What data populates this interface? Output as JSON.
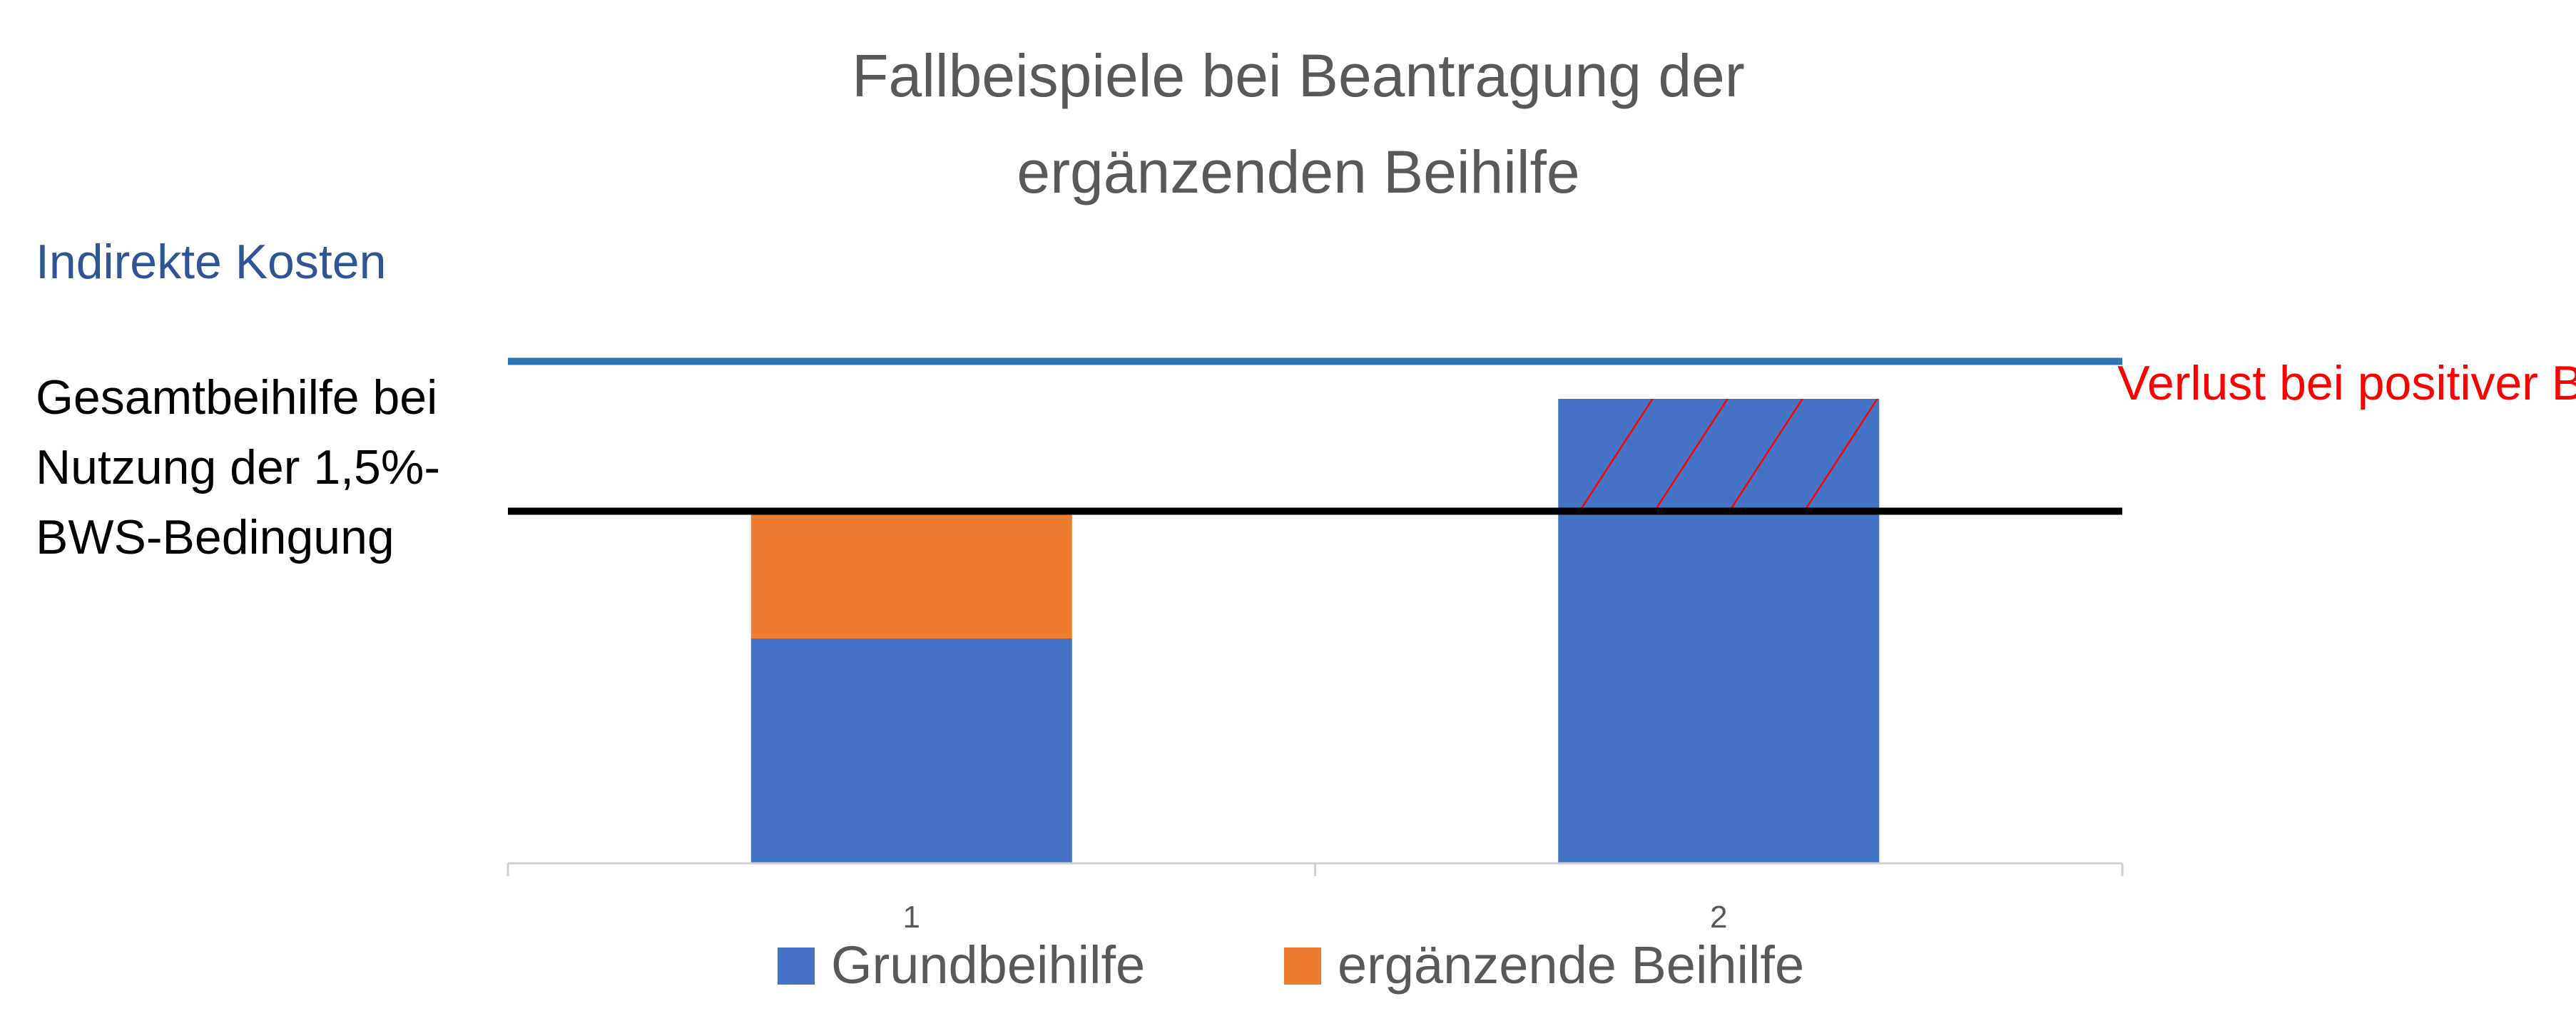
{
  "chart_data": {
    "type": "bar",
    "stacked": true,
    "title_lines": [
      "Fallbeispiele bei Beantragung der",
      "ergänzenden Beihilfe"
    ],
    "categories": [
      "1",
      "2"
    ],
    "series": [
      {
        "name": "Grundbeihilfe",
        "values": [
          30,
          62
        ]
      },
      {
        "name": "ergänzende Beihilfe",
        "values": [
          17,
          0
        ]
      }
    ],
    "ylim": [
      0,
      100
    ],
    "reference_lines": [
      {
        "label": "Indirekte Kosten",
        "value": 67,
        "color": "#2E75B6",
        "label_lines": [
          "Indirekte Kosten"
        ]
      },
      {
        "label": "Gesamtbeihilfe bei Nutzung der 1,5%-BWS-Bedingung",
        "value": 47,
        "color": "#000000",
        "label_lines": [
          "Gesamtbeihilfe bei",
          "Nutzung der 1,5%-",
          "BWS-Bedingung"
        ]
      }
    ],
    "annotations": [
      {
        "text": "Verlust bei positiver BWS",
        "category": "2",
        "from": 47,
        "to": 62,
        "color": "#FF0000"
      }
    ],
    "legend_position": "bottom",
    "grid": false,
    "colors": {
      "Grundbeihilfe": "#4472C4",
      "ergänzende Beihilfe": "#ED7D31",
      "axis": "#D0D0D0",
      "title": "#595959",
      "tick": "#595959"
    }
  }
}
